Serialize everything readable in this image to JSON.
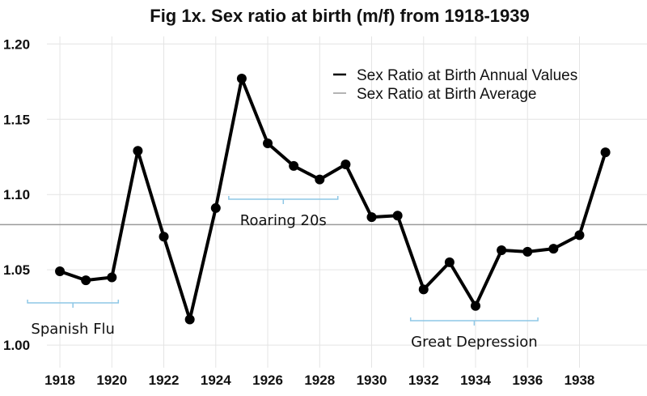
{
  "chart_data": {
    "type": "line",
    "title": "Fig 1x. Sex ratio at birth (m/f) from 1918-1939",
    "xlabel": "",
    "ylabel": "",
    "xlim": [
      1917.5,
      1940.6
    ],
    "ylim": [
      0.985,
      1.205
    ],
    "grid": true,
    "legend_position": "top-right",
    "x_ticks": [
      "1918",
      "1920",
      "1922",
      "1924",
      "1926",
      "1928",
      "1930",
      "1932",
      "1934",
      "1936",
      "1938"
    ],
    "y_ticks": [
      "1.00",
      "1.05",
      "1.10",
      "1.15",
      "1.20"
    ],
    "x": [
      1918,
      1919,
      1920,
      1921,
      1922,
      1923,
      1924,
      1925,
      1926,
      1927,
      1928,
      1929,
      1930,
      1931,
      1932,
      1933,
      1934,
      1935,
      1936,
      1937,
      1938,
      1939
    ],
    "series": [
      {
        "name": "Sex Ratio at Birth Annual Values",
        "color": "#000000",
        "values": [
          1.049,
          1.043,
          1.045,
          1.129,
          1.072,
          1.017,
          1.091,
          1.177,
          1.134,
          1.119,
          1.11,
          1.12,
          1.085,
          1.086,
          1.037,
          1.055,
          1.026,
          1.063,
          1.062,
          1.064,
          1.073,
          1.128
        ]
      },
      {
        "name": "Sex Ratio at Birth Average",
        "color": "#9a9a9a",
        "constant": 1.08
      }
    ],
    "annotations": [
      {
        "label": "Spanish Flu",
        "from": 1918,
        "to": 1920
      },
      {
        "label": "Roaring 20s",
        "from": 1924.5,
        "to": 1928.7
      },
      {
        "label": "Great Depression",
        "from": 1931.5,
        "to": 1936.4
      }
    ],
    "bracket_color": "#8ec7e6"
  }
}
